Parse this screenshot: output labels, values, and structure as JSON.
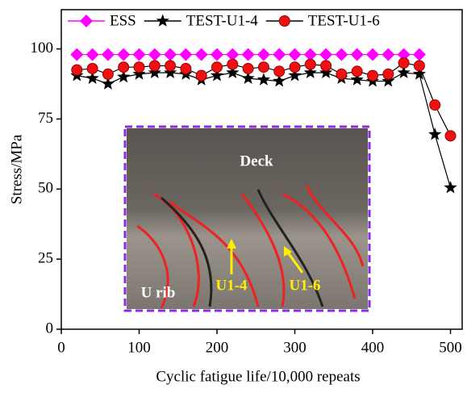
{
  "chart_data": {
    "type": "line",
    "x_label": "Cyclic fatigue life/10,000 repeats",
    "y_label": "Stress/MPa",
    "x": [
      20,
      40,
      60,
      80,
      100,
      120,
      140,
      160,
      180,
      200,
      220,
      240,
      260,
      280,
      300,
      320,
      340,
      360,
      380,
      400,
      420,
      440,
      460,
      480,
      500
    ],
    "series": [
      {
        "name": "ESS",
        "color": "#ff00ff",
        "marker": "diamond",
        "values": [
          98,
          98,
          98,
          98,
          98,
          98,
          98,
          98,
          98,
          98,
          98,
          98,
          98,
          98,
          98,
          98,
          98,
          98,
          98,
          98,
          98,
          98,
          98,
          null,
          null
        ]
      },
      {
        "name": "TEST-U1-4",
        "color": "#000000",
        "marker": "star",
        "values": [
          90.5,
          89.5,
          87.5,
          90,
          91,
          91.5,
          91.5,
          91,
          89,
          90.5,
          91.5,
          89.5,
          89,
          88.5,
          90.5,
          91.5,
          91.5,
          89.5,
          89,
          88.5,
          88.5,
          91.5,
          91,
          69.5,
          50.5
        ]
      },
      {
        "name": "TEST-U1-6",
        "color": "#ee1111",
        "marker": "circle",
        "values": [
          92.5,
          93,
          91,
          93.5,
          93.5,
          94,
          94,
          93,
          90.5,
          93.5,
          94.5,
          93,
          93.5,
          92,
          93.5,
          94.5,
          94,
          91,
          92,
          90.5,
          91,
          95,
          94,
          80,
          69
        ]
      }
    ],
    "xlim": [
      0,
      515
    ],
    "ylim": [
      0,
      114
    ],
    "xticks": [
      0,
      100,
      200,
      300,
      400,
      500
    ],
    "yticks": [
      0,
      25,
      50,
      75,
      100
    ],
    "legend": "top",
    "annotations": [
      "Deck",
      "U rib",
      "U1-4",
      "U1-6"
    ]
  }
}
